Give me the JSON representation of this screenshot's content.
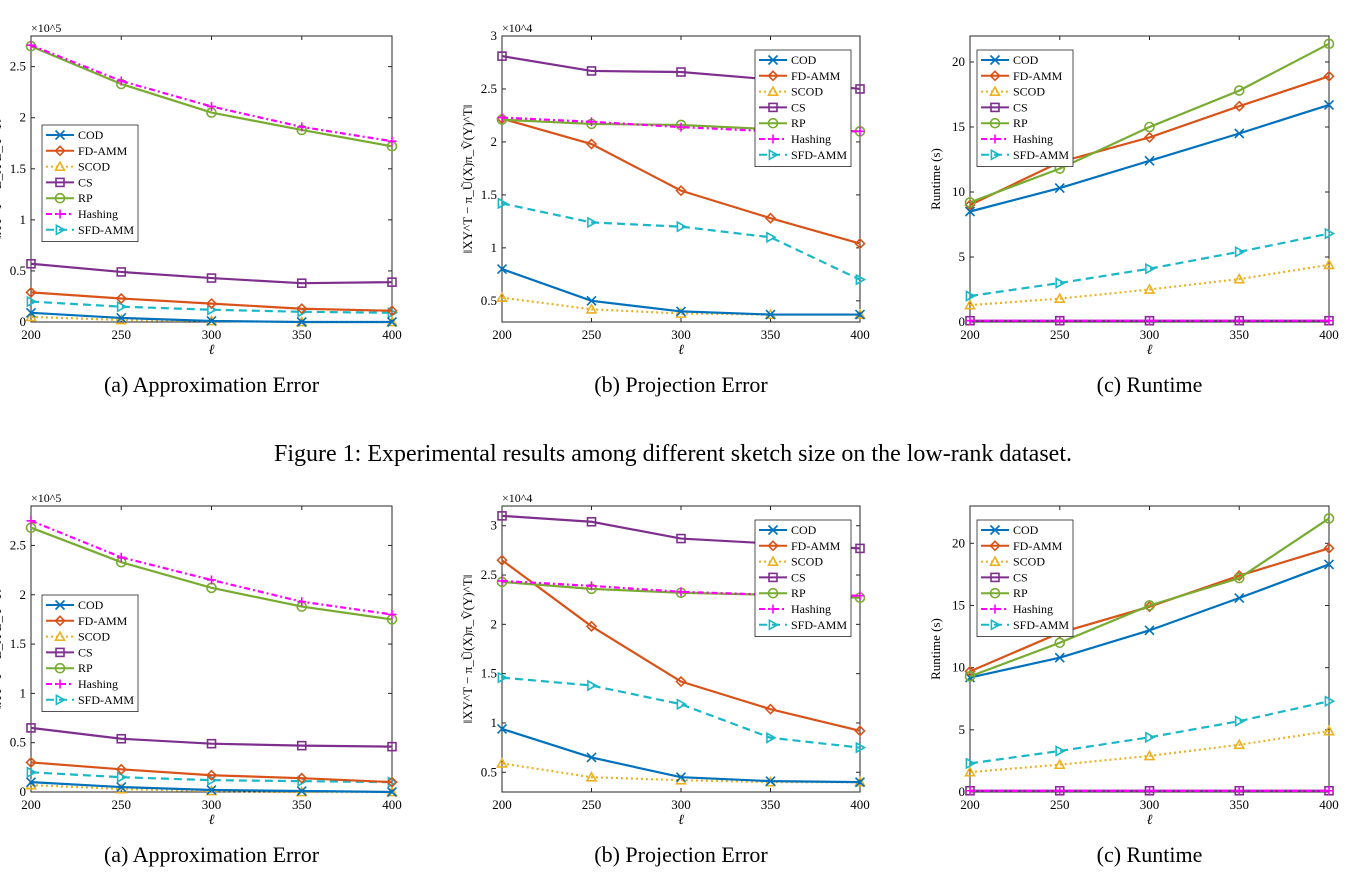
{
  "colors": {
    "COD": "#0072bd",
    "FD-AMM": "#d95319",
    "SCOD": "#edb120",
    "CS": "#7e2f8e",
    "RP": "#77ac30",
    "Hashing": "#ff00ff",
    "SFD-AMM": "#19b8c8"
  },
  "figure1_caption": "Figure 1: Experimental results among different sketch size on the low-rank dataset.",
  "chart_data": [
    {
      "type": "line",
      "caption": "(a)  Approximation Error",
      "xlabel": "ℓ",
      "ylabel": "‖XY^T − B_X B_Y^T‖",
      "exponent": "×10^5",
      "x": [
        200,
        250,
        300,
        350,
        400
      ],
      "xlim": [
        200,
        400
      ],
      "ylim": [
        0,
        2.8
      ],
      "yticks": [
        0,
        0.5,
        1,
        1.5,
        2,
        2.5
      ],
      "yticklabels": [
        "0",
        "0.5",
        "1",
        "1.5",
        "2",
        "2.5"
      ],
      "legend": "center-left",
      "series": [
        {
          "name": "COD",
          "values": [
            0.09,
            0.04,
            0.01,
            0.0,
            0.0
          ]
        },
        {
          "name": "FD-AMM",
          "values": [
            0.29,
            0.23,
            0.18,
            0.13,
            0.11
          ]
        },
        {
          "name": "SCOD",
          "values": [
            0.05,
            0.02,
            0.01,
            0.0,
            0.0
          ]
        },
        {
          "name": "CS",
          "values": [
            0.57,
            0.49,
            0.43,
            0.38,
            0.39
          ]
        },
        {
          "name": "RP",
          "values": [
            2.7,
            2.33,
            2.05,
            1.88,
            1.72
          ]
        },
        {
          "name": "Hashing",
          "values": [
            2.71,
            2.36,
            2.11,
            1.91,
            1.77
          ]
        },
        {
          "name": "SFD-AMM",
          "values": [
            0.2,
            0.15,
            0.12,
            0.1,
            0.09
          ]
        }
      ]
    },
    {
      "type": "line",
      "caption": "(b)  Projection Error",
      "xlabel": "ℓ",
      "ylabel": "‖XY^T − π_Ũ(X)π_Ṽ(Y)^T‖",
      "exponent": "×10^4",
      "x": [
        200,
        250,
        300,
        350,
        400
      ],
      "xlim": [
        200,
        400
      ],
      "ylim": [
        0.3,
        3.0
      ],
      "yticks": [
        0.5,
        1,
        1.5,
        2,
        2.5,
        3
      ],
      "yticklabels": [
        "0.5",
        "1",
        "1.5",
        "2",
        "2.5",
        "3"
      ],
      "legend": "top-right",
      "series": [
        {
          "name": "COD",
          "values": [
            0.8,
            0.5,
            0.4,
            0.37,
            0.37
          ]
        },
        {
          "name": "FD-AMM",
          "values": [
            2.22,
            1.98,
            1.54,
            1.28,
            1.04
          ]
        },
        {
          "name": "SCOD",
          "values": [
            0.53,
            0.42,
            0.38,
            0.37,
            0.37
          ]
        },
        {
          "name": "CS",
          "values": [
            2.81,
            2.67,
            2.66,
            2.59,
            2.5
          ]
        },
        {
          "name": "RP",
          "values": [
            2.21,
            2.17,
            2.16,
            2.12,
            2.1
          ]
        },
        {
          "name": "Hashing",
          "values": [
            2.23,
            2.19,
            2.14,
            2.1,
            2.1
          ]
        },
        {
          "name": "SFD-AMM",
          "values": [
            1.42,
            1.24,
            1.2,
            1.1,
            0.7
          ]
        }
      ]
    },
    {
      "type": "line",
      "caption": "(c)  Runtime",
      "xlabel": "ℓ",
      "ylabel": "Runtime (s)",
      "exponent": "",
      "x": [
        200,
        250,
        300,
        350,
        400
      ],
      "xlim": [
        200,
        400
      ],
      "ylim": [
        0,
        22
      ],
      "yticks": [
        0,
        5,
        10,
        15,
        20
      ],
      "yticklabels": [
        "0",
        "5",
        "10",
        "15",
        "20"
      ],
      "legend": "top-left",
      "series": [
        {
          "name": "COD",
          "values": [
            8.5,
            10.3,
            12.4,
            14.5,
            16.7
          ]
        },
        {
          "name": "FD-AMM",
          "values": [
            9.0,
            12.3,
            14.2,
            16.6,
            18.9
          ]
        },
        {
          "name": "SCOD",
          "values": [
            1.3,
            1.8,
            2.5,
            3.3,
            4.4
          ]
        },
        {
          "name": "CS",
          "values": [
            0.1,
            0.1,
            0.1,
            0.1,
            0.1
          ]
        },
        {
          "name": "RP",
          "values": [
            9.2,
            11.8,
            15.0,
            17.8,
            21.4
          ]
        },
        {
          "name": "Hashing",
          "values": [
            0.1,
            0.1,
            0.1,
            0.1,
            0.1
          ]
        },
        {
          "name": "SFD-AMM",
          "values": [
            2.0,
            3.0,
            4.1,
            5.4,
            6.8
          ]
        }
      ]
    },
    {
      "type": "line",
      "caption": "(a)  Approximation Error",
      "xlabel": "ℓ",
      "ylabel": "‖XY^T − B_X B_Y^T‖",
      "exponent": "×10^5",
      "x": [
        200,
        250,
        300,
        350,
        400
      ],
      "xlim": [
        200,
        400
      ],
      "ylim": [
        0,
        2.9
      ],
      "yticks": [
        0,
        0.5,
        1,
        1.5,
        2,
        2.5
      ],
      "yticklabels": [
        "0",
        "0.5",
        "1",
        "1.5",
        "2",
        "2.5"
      ],
      "legend": "center-left",
      "series": [
        {
          "name": "COD",
          "values": [
            0.1,
            0.05,
            0.02,
            0.01,
            0.0
          ]
        },
        {
          "name": "FD-AMM",
          "values": [
            0.3,
            0.23,
            0.17,
            0.14,
            0.1
          ]
        },
        {
          "name": "SCOD",
          "values": [
            0.07,
            0.03,
            0.01,
            0.0,
            0.0
          ]
        },
        {
          "name": "CS",
          "values": [
            0.65,
            0.54,
            0.49,
            0.47,
            0.46
          ]
        },
        {
          "name": "RP",
          "values": [
            2.68,
            2.33,
            2.07,
            1.88,
            1.75
          ]
        },
        {
          "name": "Hashing",
          "values": [
            2.75,
            2.38,
            2.15,
            1.93,
            1.8
          ]
        },
        {
          "name": "SFD-AMM",
          "values": [
            0.2,
            0.15,
            0.12,
            0.11,
            0.1
          ]
        }
      ]
    },
    {
      "type": "line",
      "caption": "(b)  Projection Error",
      "xlabel": "ℓ",
      "ylabel": "‖XY^T − π_Ũ(X)π_Ṽ(Y)^T‖",
      "exponent": "×10^4",
      "x": [
        200,
        250,
        300,
        350,
        400
      ],
      "xlim": [
        200,
        400
      ],
      "ylim": [
        0.3,
        3.2
      ],
      "yticks": [
        0.5,
        1,
        1.5,
        2,
        2.5,
        3
      ],
      "yticklabels": [
        "0.5",
        "1",
        "1.5",
        "2",
        "2.5",
        "3"
      ],
      "legend": "top-right",
      "series": [
        {
          "name": "COD",
          "values": [
            0.94,
            0.65,
            0.45,
            0.41,
            0.4
          ]
        },
        {
          "name": "FD-AMM",
          "values": [
            2.65,
            1.98,
            1.42,
            1.14,
            0.92
          ]
        },
        {
          "name": "SCOD",
          "values": [
            0.59,
            0.45,
            0.42,
            0.4,
            0.4
          ]
        },
        {
          "name": "CS",
          "values": [
            3.1,
            3.04,
            2.87,
            2.82,
            2.77
          ]
        },
        {
          "name": "RP",
          "values": [
            2.43,
            2.36,
            2.32,
            2.3,
            2.27
          ]
        },
        {
          "name": "Hashing",
          "values": [
            2.44,
            2.39,
            2.33,
            2.3,
            2.29
          ]
        },
        {
          "name": "SFD-AMM",
          "values": [
            1.46,
            1.38,
            1.19,
            0.85,
            0.75
          ]
        }
      ]
    },
    {
      "type": "line",
      "caption": "(c)  Runtime",
      "xlabel": "ℓ",
      "ylabel": "Runtime (s)",
      "exponent": "",
      "x": [
        200,
        250,
        300,
        350,
        400
      ],
      "xlim": [
        200,
        400
      ],
      "ylim": [
        0,
        23
      ],
      "yticks": [
        0,
        5,
        10,
        15,
        20
      ],
      "yticklabels": [
        "0",
        "5",
        "10",
        "15",
        "20"
      ],
      "legend": "top-left",
      "series": [
        {
          "name": "COD",
          "values": [
            9.2,
            10.8,
            13.0,
            15.6,
            18.3
          ]
        },
        {
          "name": "FD-AMM",
          "values": [
            9.7,
            12.8,
            14.9,
            17.4,
            19.6
          ]
        },
        {
          "name": "SCOD",
          "values": [
            1.6,
            2.2,
            2.9,
            3.8,
            4.9
          ]
        },
        {
          "name": "CS",
          "values": [
            0.1,
            0.1,
            0.1,
            0.1,
            0.1
          ]
        },
        {
          "name": "RP",
          "values": [
            9.3,
            12.0,
            15.0,
            17.2,
            22.0
          ]
        },
        {
          "name": "Hashing",
          "values": [
            0.1,
            0.1,
            0.1,
            0.1,
            0.1
          ]
        },
        {
          "name": "SFD-AMM",
          "values": [
            2.3,
            3.3,
            4.4,
            5.7,
            7.3
          ]
        }
      ]
    }
  ]
}
